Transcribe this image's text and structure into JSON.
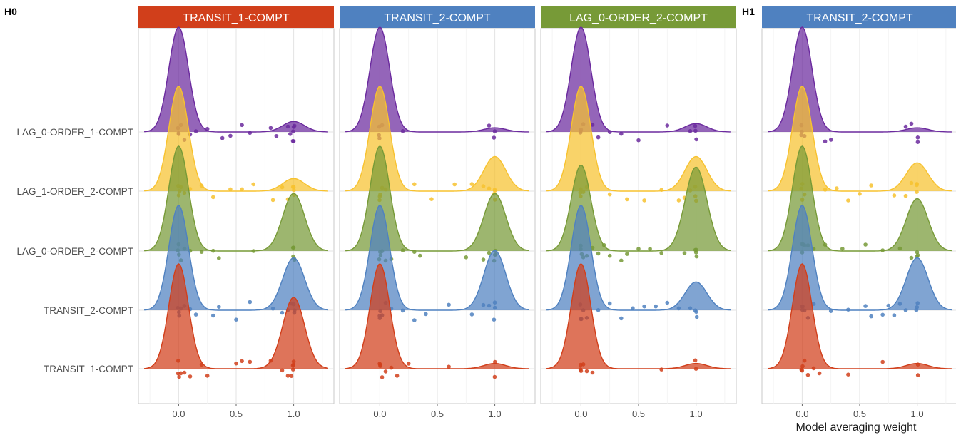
{
  "colors": {
    "TRANSIT_1-COMPT": "#D13F1B",
    "TRANSIT_2-COMPT": "#4F81C0",
    "LAG_0-ORDER_2-COMPT": "#779A37",
    "LAG_1-ORDER_2-COMPT": "#F7C22F",
    "LAG_0-ORDER_1-COMPT": "#6B2A9E"
  },
  "chart_data": {
    "type": "ridgeline",
    "xlabel": "Model averaging weight",
    "xlim": [
      -0.35,
      1.35
    ],
    "xticks": [
      0.0,
      0.5,
      1.0
    ],
    "xtick_labels": [
      "0.0",
      "0.5",
      "1.0"
    ],
    "categories": [
      "LAG_0-ORDER_1-COMPT",
      "LAG_1-ORDER_2-COMPT",
      "LAG_0-ORDER_2-COMPT",
      "TRANSIT_2-COMPT",
      "TRANSIT_1-COMPT"
    ],
    "groups": [
      {
        "label": "H0",
        "xlabel": ""
      },
      {
        "label": "H1",
        "xlabel": "Model averaging weight"
      }
    ],
    "panels": [
      {
        "group": "H0",
        "title": "TRANSIT_1-COMPT",
        "strip_color": "#D13F1B",
        "series": [
          {
            "name": "LAG_0-ORDER_1-COMPT",
            "mode0": 0.0,
            "amp0": 1.0,
            "mode1": 1.0,
            "amp1": 0.1,
            "points_x": [
              0.0,
              0.0,
              0.0,
              0.02,
              0.05,
              0.1,
              0.15,
              0.25,
              0.38,
              0.45,
              0.55,
              0.62,
              0.8,
              0.85,
              0.95,
              0.97,
              1.0,
              1.0,
              1.0,
              1.0,
              1.0
            ]
          },
          {
            "name": "LAG_1-ORDER_2-COMPT",
            "mode0": 0.0,
            "amp0": 1.0,
            "mode1": 1.0,
            "amp1": 0.12,
            "points_x": [
              0.0,
              0.0,
              0.0,
              0.02,
              0.05,
              0.1,
              0.2,
              0.3,
              0.45,
              0.55,
              0.65,
              0.82,
              0.9,
              0.95,
              1.0,
              1.0,
              1.0,
              1.0
            ]
          },
          {
            "name": "LAG_0-ORDER_2-COMPT",
            "mode0": 0.0,
            "amp0": 1.0,
            "mode1": 1.0,
            "amp1": 0.55,
            "points_x": [
              0.0,
              0.0,
              0.0,
              0.02,
              0.05,
              0.1,
              0.2,
              0.3,
              0.35,
              0.65,
              1.0,
              1.0,
              1.0,
              1.0,
              1.0
            ]
          },
          {
            "name": "TRANSIT_2-COMPT",
            "mode0": 0.0,
            "amp0": 1.0,
            "mode1": 1.0,
            "amp1": 0.5,
            "points_x": [
              0.0,
              0.0,
              0.0,
              0.02,
              0.05,
              0.1,
              0.15,
              0.3,
              0.35,
              0.5,
              0.62,
              0.82,
              0.9,
              0.95,
              0.98,
              1.0,
              1.0,
              1.0
            ]
          },
          {
            "name": "TRANSIT_1-COMPT",
            "mode0": 0.0,
            "amp0": 1.0,
            "mode1": 1.0,
            "amp1": 0.68,
            "points_x": [
              0.0,
              0.0,
              0.0,
              0.02,
              0.05,
              0.1,
              0.2,
              0.25,
              0.5,
              0.55,
              0.62,
              0.8,
              0.9,
              0.95,
              0.98,
              1.0,
              1.0,
              1.0,
              1.0
            ]
          }
        ]
      },
      {
        "group": "H0",
        "title": "TRANSIT_2-COMPT",
        "strip_color": "#4F81C0",
        "series": [
          {
            "name": "LAG_0-ORDER_1-COMPT",
            "mode0": 0.0,
            "amp0": 1.0,
            "mode1": 1.0,
            "amp1": 0.04,
            "points_x": [
              0.0,
              0.0,
              0.0,
              0.02,
              0.2,
              0.95,
              1.0,
              1.0
            ]
          },
          {
            "name": "LAG_1-ORDER_2-COMPT",
            "mode0": 0.0,
            "amp0": 1.0,
            "mode1": 1.0,
            "amp1": 0.33,
            "points_x": [
              0.0,
              0.0,
              0.0,
              0.02,
              0.05,
              0.3,
              0.45,
              0.65,
              0.8,
              0.9,
              0.95,
              1.0,
              1.0,
              1.0,
              1.0
            ]
          },
          {
            "name": "LAG_0-ORDER_2-COMPT",
            "mode0": 0.0,
            "amp0": 1.0,
            "mode1": 1.0,
            "amp1": 0.55,
            "points_x": [
              0.0,
              0.0,
              0.0,
              0.02,
              0.05,
              0.1,
              0.2,
              0.3,
              0.35,
              0.75,
              0.9,
              0.95,
              1.0,
              1.0,
              1.0,
              1.0
            ]
          },
          {
            "name": "TRANSIT_2-COMPT",
            "mode0": 0.0,
            "amp0": 1.0,
            "mode1": 1.0,
            "amp1": 0.57,
            "points_x": [
              0.0,
              0.0,
              0.0,
              0.02,
              0.05,
              0.1,
              0.2,
              0.3,
              0.4,
              0.6,
              0.8,
              0.9,
              0.95,
              1.0,
              1.0,
              1.0
            ]
          },
          {
            "name": "TRANSIT_1-COMPT",
            "mode0": 0.0,
            "amp0": 1.0,
            "mode1": 1.0,
            "amp1": 0.05,
            "points_x": [
              0.0,
              0.0,
              0.0,
              0.02,
              0.05,
              0.1,
              0.15,
              0.25,
              0.6,
              1.0,
              1.0
            ]
          }
        ]
      },
      {
        "group": "H0",
        "title": "LAG_0-ORDER_2-COMPT",
        "strip_color": "#779A37",
        "series": [
          {
            "name": "LAG_0-ORDER_1-COMPT",
            "mode0": 0.0,
            "amp0": 1.0,
            "mode1": 1.0,
            "amp1": 0.08,
            "points_x": [
              0.0,
              0.0,
              0.0,
              0.02,
              0.1,
              0.15,
              0.25,
              0.35,
              0.5,
              0.75,
              0.95,
              1.0,
              1.0,
              1.0
            ]
          },
          {
            "name": "LAG_1-ORDER_2-COMPT",
            "mode0": 0.0,
            "amp0": 1.0,
            "mode1": 1.0,
            "amp1": 0.33,
            "points_x": [
              0.0,
              0.0,
              0.0,
              0.02,
              0.05,
              0.25,
              0.4,
              0.55,
              0.7,
              0.85,
              0.9,
              0.95,
              1.0,
              1.0,
              1.0
            ]
          },
          {
            "name": "LAG_0-ORDER_2-COMPT",
            "mode0": 0.0,
            "amp0": 0.82,
            "mode1": 1.0,
            "amp1": 0.8,
            "points_x": [
              0.0,
              0.0,
              0.0,
              0.02,
              0.05,
              0.1,
              0.15,
              0.2,
              0.25,
              0.35,
              0.4,
              0.5,
              0.6,
              0.7,
              0.9,
              1.0,
              1.0,
              1.0,
              1.0
            ]
          },
          {
            "name": "TRANSIT_2-COMPT",
            "mode0": 0.0,
            "amp0": 1.0,
            "mode1": 1.0,
            "amp1": 0.27,
            "points_x": [
              0.0,
              0.0,
              0.0,
              0.02,
              0.05,
              0.15,
              0.25,
              0.35,
              0.45,
              0.55,
              0.65,
              0.75,
              0.85,
              0.95,
              1.0,
              1.0,
              1.0
            ]
          },
          {
            "name": "TRANSIT_1-COMPT",
            "mode0": 0.0,
            "amp0": 1.0,
            "mode1": 1.0,
            "amp1": 0.05,
            "points_x": [
              0.0,
              0.0,
              0.0,
              0.02,
              0.05,
              0.1,
              0.7,
              1.0,
              1.0
            ]
          }
        ]
      },
      {
        "group": "H1",
        "title": "TRANSIT_2-COMPT",
        "strip_color": "#4F81C0",
        "series": [
          {
            "name": "LAG_0-ORDER_1-COMPT",
            "mode0": 0.0,
            "amp0": 1.0,
            "mode1": 1.0,
            "amp1": 0.04,
            "points_x": [
              0.0,
              0.0,
              0.0,
              0.02,
              0.2,
              0.25,
              0.9,
              0.95,
              1.0,
              1.0
            ]
          },
          {
            "name": "LAG_1-ORDER_2-COMPT",
            "mode0": 0.0,
            "amp0": 1.0,
            "mode1": 1.0,
            "amp1": 0.27,
            "points_x": [
              0.0,
              0.0,
              0.0,
              0.02,
              0.2,
              0.3,
              0.4,
              0.5,
              0.6,
              0.8,
              0.9,
              0.95,
              1.0,
              1.0,
              1.0
            ]
          },
          {
            "name": "LAG_0-ORDER_2-COMPT",
            "mode0": 0.0,
            "amp0": 1.0,
            "mode1": 1.0,
            "amp1": 0.5,
            "points_x": [
              0.0,
              0.0,
              0.0,
              0.02,
              0.05,
              0.1,
              0.2,
              0.35,
              0.55,
              0.7,
              0.85,
              0.95,
              1.0,
              1.0,
              1.0
            ]
          },
          {
            "name": "TRANSIT_2-COMPT",
            "mode0": 0.0,
            "amp0": 1.0,
            "mode1": 1.0,
            "amp1": 0.5,
            "points_x": [
              0.0,
              0.0,
              0.0,
              0.02,
              0.05,
              0.1,
              0.25,
              0.4,
              0.55,
              0.6,
              0.7,
              0.75,
              0.8,
              0.85,
              0.9,
              1.0,
              1.0,
              1.0
            ]
          },
          {
            "name": "TRANSIT_1-COMPT",
            "mode0": 0.0,
            "amp0": 1.0,
            "mode1": 1.0,
            "amp1": 0.05,
            "points_x": [
              0.0,
              0.0,
              0.0,
              0.02,
              0.05,
              0.1,
              0.15,
              0.4,
              0.7,
              1.0,
              1.0
            ]
          }
        ]
      }
    ]
  }
}
